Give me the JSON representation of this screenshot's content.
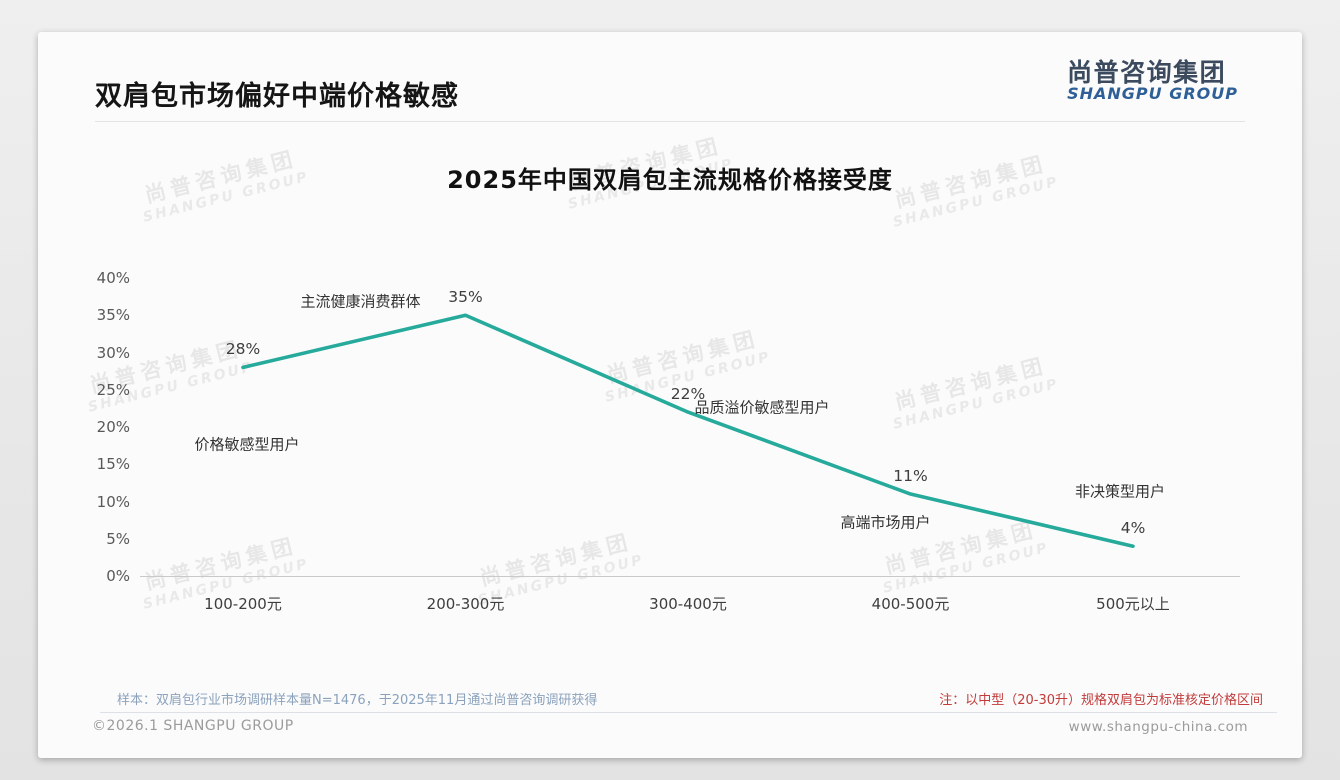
{
  "page": {
    "title": "双肩包市场偏好中端价格敏感",
    "logo": {
      "cn": "尚普咨询集团",
      "en": "SHANGPU GROUP"
    },
    "watermark": {
      "line1": "尚普咨询集团",
      "line2": "SHANGPU GROUP"
    },
    "footer": {
      "sample_note": "样本：双肩包行业市场调研样本量N=1476，于2025年11月通过尚普咨询调研获得",
      "price_note": "注：以中型（20-30升）规格双肩包为标准核定价格区间",
      "copyright": "©2026.1 SHANGPU GROUP",
      "website": "www.shangpu-china.com"
    }
  },
  "chart_data": {
    "type": "line",
    "title": "2025年中国双肩包主流规格价格接受度",
    "categories": [
      "100-200元",
      "200-300元",
      "300-400元",
      "400-500元",
      "500元以上"
    ],
    "values": [
      28,
      35,
      22,
      11,
      4
    ],
    "value_labels": [
      "28%",
      "35%",
      "22%",
      "11%",
      "4%"
    ],
    "point_annotations": [
      "价格敏感型用户",
      "主流健康消费群体",
      "品质溢价敏感型用户",
      "高端市场用户",
      "非决策型用户"
    ],
    "xlabel": "",
    "ylabel": "",
    "ylim": [
      0,
      40
    ],
    "y_tick_step": 5,
    "y_ticks": [
      "0%",
      "5%",
      "10%",
      "15%",
      "20%",
      "25%",
      "30%",
      "35%",
      "40%"
    ],
    "line_color": "#26aa9b",
    "grid": false,
    "legend": null
  }
}
